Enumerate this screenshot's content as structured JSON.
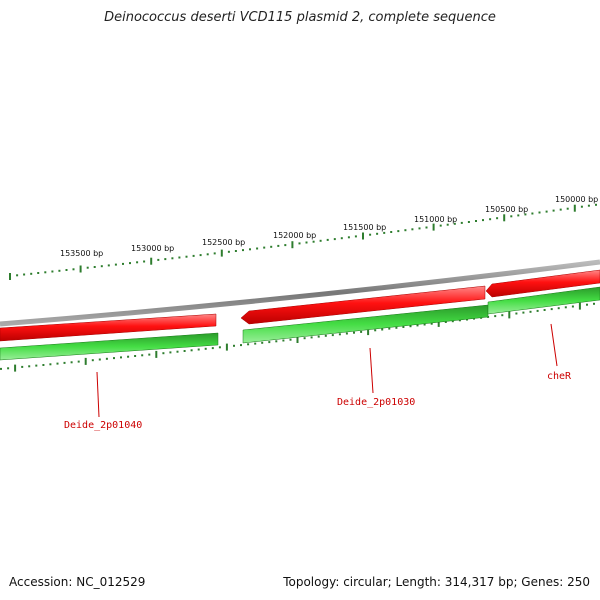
{
  "title": "Deinococcus deserti VCD115 plasmid 2, complete sequence",
  "colors": {
    "backbone": "#888888",
    "forward_strand": "#ff1111",
    "reverse_strand": "#33cc33",
    "reverse_strand_dark": "#118811",
    "tick": "#2e7d2e",
    "label": "#cc0000"
  },
  "scale": {
    "unit": "bp",
    "major_ticks": [
      {
        "bp": 153500,
        "label": "153500 bp"
      },
      {
        "bp": 153000,
        "label": "153000 bp"
      },
      {
        "bp": 152500,
        "label": "152500 bp"
      },
      {
        "bp": 152000,
        "label": "152000 bp"
      },
      {
        "bp": 151500,
        "label": "151500 bp"
      },
      {
        "bp": 151000,
        "label": "151000 bp"
      },
      {
        "bp": 150500,
        "label": "150500 bp"
      },
      {
        "bp": 150000,
        "label": "150000 bp"
      }
    ]
  },
  "genes": [
    {
      "name": "Deide_2p01040",
      "strand": "reverse"
    },
    {
      "name": "Deide_2p01030",
      "strand": "reverse"
    },
    {
      "name": "cheR",
      "strand": "reverse"
    }
  ],
  "footer": {
    "accession_label": "Accession:",
    "accession": "NC_012529",
    "topology_label": "Topology:",
    "topology": "circular",
    "length_label": "Length:",
    "length": "314,317 bp",
    "genes_label": "Genes:",
    "genes_count": "250"
  }
}
